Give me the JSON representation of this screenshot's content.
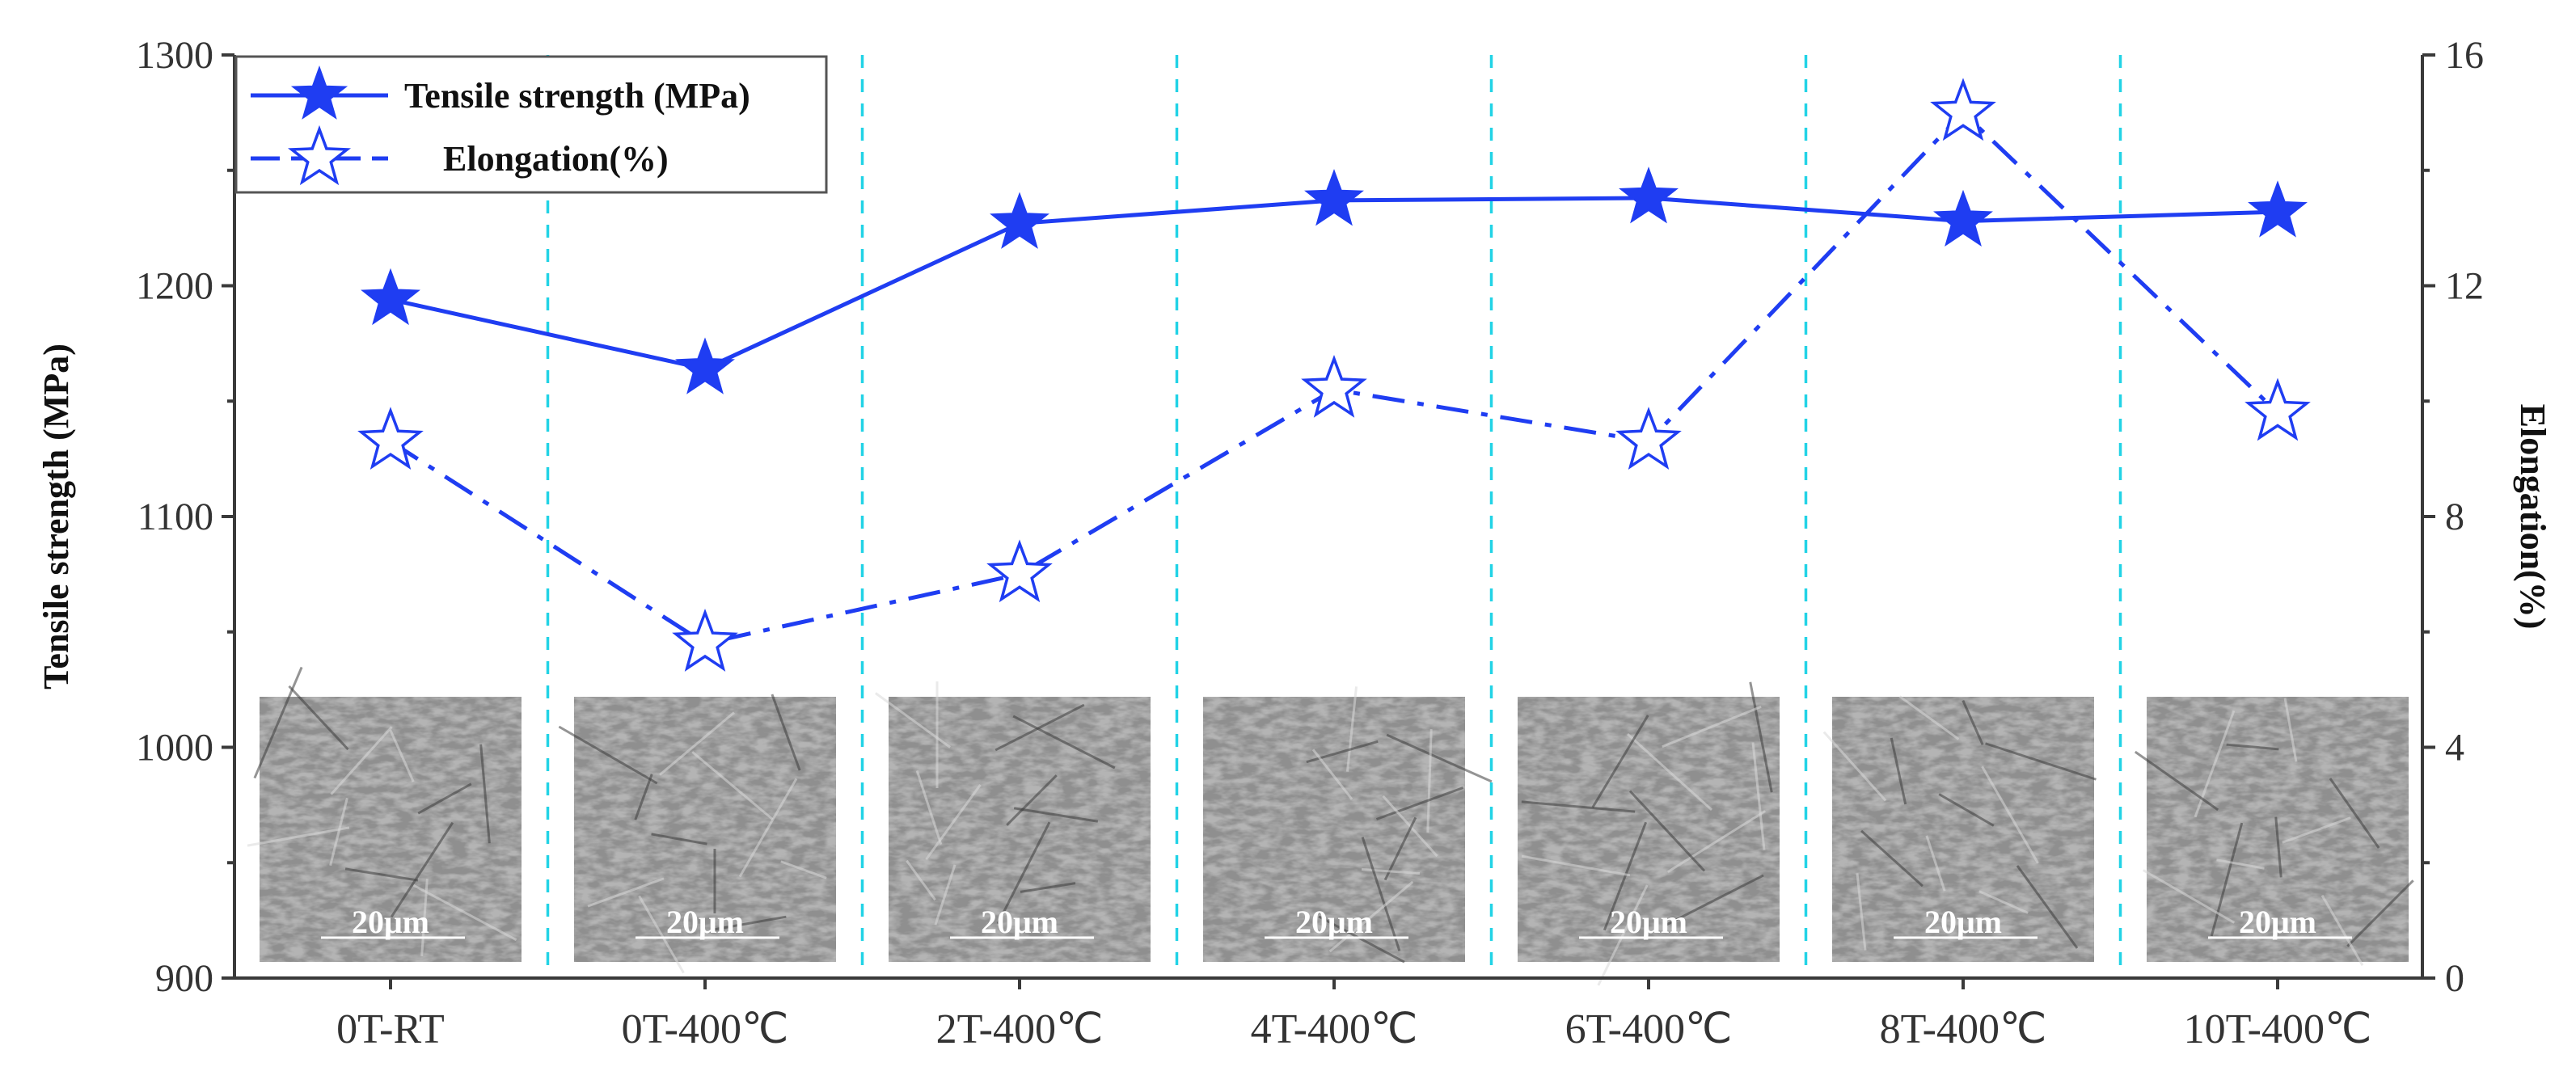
{
  "chart_data": {
    "type": "line",
    "categories": [
      "0T-RT",
      "0T-400℃",
      "2T-400℃",
      "4T-400℃",
      "6T-400℃",
      "8T-400℃",
      "10T-400℃"
    ],
    "series": [
      {
        "name": "Tensile strength (MPa)",
        "axis": "left",
        "values": [
          1194,
          1164,
          1227,
          1237,
          1238,
          1228,
          1232
        ],
        "marker": "filled-star",
        "line_style": "solid",
        "color": "#1f3df2"
      },
      {
        "name": "Elongation(%)",
        "axis": "right",
        "values": [
          9.3,
          5.8,
          7.0,
          10.2,
          9.3,
          15.0,
          9.8
        ],
        "marker": "hollow-star",
        "line_style": "dash-dot",
        "color": "#1f3df2"
      }
    ],
    "ylabel": "Tensile strength (MPa)",
    "ylabel_right": "Elongation(%)",
    "xlabel": "",
    "ylim": [
      900,
      1300
    ],
    "ylim_right": [
      0,
      16
    ],
    "yticks": [
      900,
      1000,
      1100,
      1200,
      1300
    ],
    "yticks_right": [
      0,
      4,
      8,
      12,
      16
    ],
    "legend_position": "top-left",
    "grid": false,
    "category_dividers": "dashed-cyan",
    "micrographs": [
      {
        "category": "0T-RT",
        "scale_label": "20μm"
      },
      {
        "category": "0T-400℃",
        "scale_label": "20μm"
      },
      {
        "category": "2T-400℃",
        "scale_label": "20μm"
      },
      {
        "category": "4T-400℃",
        "scale_label": "20μm"
      },
      {
        "category": "6T-400℃",
        "scale_label": "20μm"
      },
      {
        "category": "8T-400℃",
        "scale_label": "20μm"
      },
      {
        "category": "10T-400℃",
        "scale_label": "20μm"
      }
    ]
  },
  "colors": {
    "series": "#1f3df2",
    "divider": "#22d3e6",
    "axis": "#3a3a3a"
  }
}
